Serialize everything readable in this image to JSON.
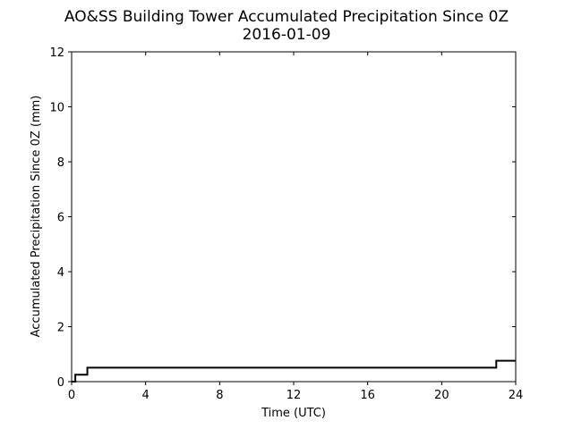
{
  "chart_data": {
    "type": "line",
    "title": "AO&SS Building Tower Accumulated Precipitation Since 0Z",
    "subtitle": "2016-01-09",
    "xlabel": "Time (UTC)",
    "ylabel": "Accumulated Precipitation Since 0Z (mm)",
    "xlim": [
      0,
      24
    ],
    "ylim": [
      0,
      12
    ],
    "xticks": [
      0,
      4,
      8,
      12,
      16,
      20,
      24
    ],
    "yticks": [
      0,
      2,
      4,
      6,
      8,
      10,
      12
    ],
    "xtick_labels": [
      "0",
      "4",
      "8",
      "12",
      "16",
      "20",
      "24"
    ],
    "ytick_labels": [
      "0",
      "2",
      "4",
      "6",
      "8",
      "10",
      "12"
    ],
    "grid": false,
    "legend": "none",
    "line_color": "#000000",
    "series": [
      {
        "x": [
          0,
          0.2,
          0.2,
          0.85,
          0.85,
          22.95,
          22.95,
          24
        ],
        "y": [
          0,
          0,
          0.25,
          0.25,
          0.51,
          0.51,
          0.76,
          0.76
        ]
      }
    ]
  }
}
